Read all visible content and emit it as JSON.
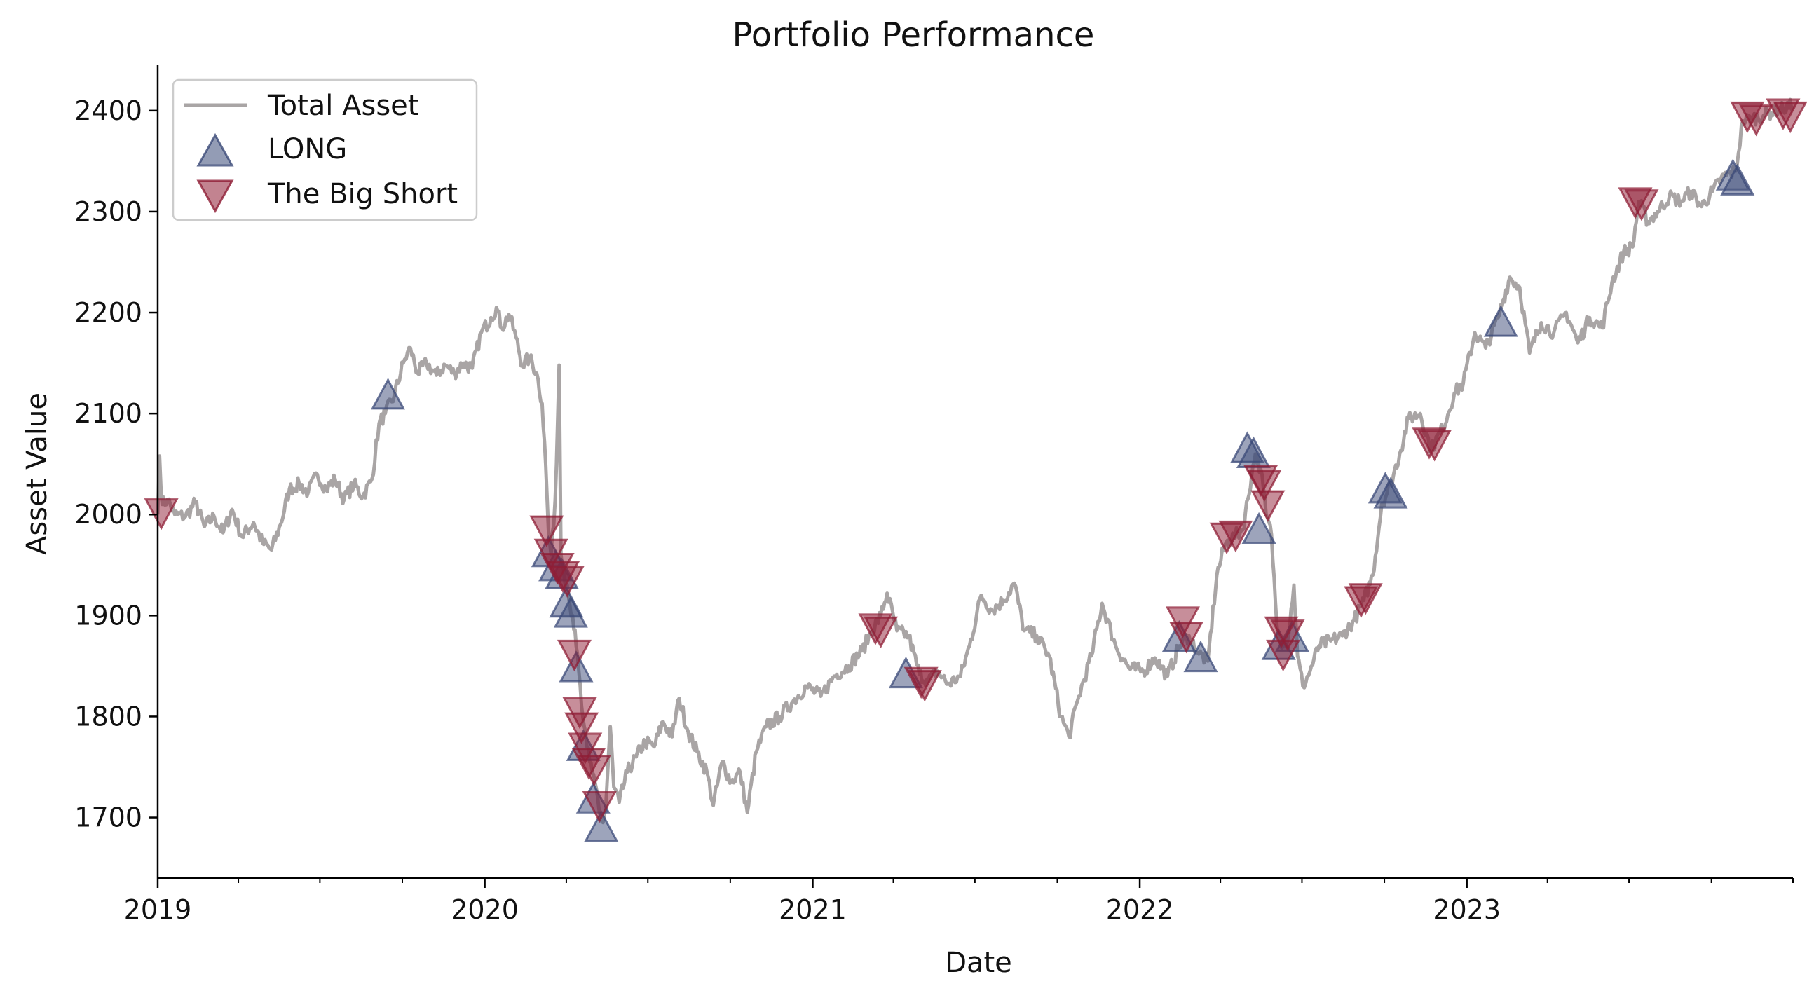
{
  "chart_data": {
    "type": "line",
    "title": "Portfolio Performance",
    "xlabel": "Date",
    "ylabel": "Asset Value",
    "xlim": [
      "2019-01-01",
      "2023-12-31"
    ],
    "ylim": [
      1640,
      2445
    ],
    "x_ticks": [
      "2019",
      "2020",
      "2021",
      "2022",
      "2023"
    ],
    "y_ticks": [
      1700,
      1800,
      1900,
      2000,
      2100,
      2200,
      2300,
      2400
    ],
    "grid": false,
    "legend_position": "top-left",
    "colors": {
      "line": "#a9a5a5",
      "long": "#3b4a78",
      "short": "#8f1d35"
    },
    "series": [
      {
        "name": "Total Asset",
        "kind": "line",
        "points": [
          [
            "2019-01-01",
            2000
          ],
          [
            "2019-01-03",
            2058
          ],
          [
            "2019-01-06",
            2010
          ],
          [
            "2019-01-12",
            2015
          ],
          [
            "2019-01-20",
            2000
          ],
          [
            "2019-02-01",
            1998
          ],
          [
            "2019-02-12",
            2012
          ],
          [
            "2019-02-22",
            1988
          ],
          [
            "2019-03-05",
            1998
          ],
          [
            "2019-03-15",
            1982
          ],
          [
            "2019-03-25",
            2005
          ],
          [
            "2019-04-05",
            1978
          ],
          [
            "2019-04-18",
            1992
          ],
          [
            "2019-04-28",
            1972
          ],
          [
            "2019-05-08",
            1965
          ],
          [
            "2019-05-18",
            1990
          ],
          [
            "2019-05-28",
            2025
          ],
          [
            "2019-06-08",
            2030
          ],
          [
            "2019-06-18",
            2022
          ],
          [
            "2019-06-28",
            2040
          ],
          [
            "2019-07-08",
            2025
          ],
          [
            "2019-07-18",
            2035
          ],
          [
            "2019-07-28",
            2015
          ],
          [
            "2019-08-08",
            2030
          ],
          [
            "2019-08-18",
            2018
          ],
          [
            "2019-08-28",
            2035
          ],
          [
            "2019-09-05",
            2090
          ],
          [
            "2019-09-12",
            2100
          ],
          [
            "2019-09-22",
            2118
          ],
          [
            "2019-10-02",
            2150
          ],
          [
            "2019-10-10",
            2165
          ],
          [
            "2019-10-18",
            2140
          ],
          [
            "2019-10-28",
            2150
          ],
          [
            "2019-11-08",
            2138
          ],
          [
            "2019-11-18",
            2148
          ],
          [
            "2019-11-28",
            2140
          ],
          [
            "2019-12-08",
            2150
          ],
          [
            "2019-12-18",
            2145
          ],
          [
            "2019-12-28",
            2180
          ],
          [
            "2020-01-08",
            2195
          ],
          [
            "2020-01-14",
            2205
          ],
          [
            "2020-01-20",
            2185
          ],
          [
            "2020-01-28",
            2198
          ],
          [
            "2020-02-05",
            2175
          ],
          [
            "2020-02-12",
            2148
          ],
          [
            "2020-02-20",
            2155
          ],
          [
            "2020-02-28",
            2140
          ],
          [
            "2020-03-05",
            2110
          ],
          [
            "2020-03-09",
            2050
          ],
          [
            "2020-03-12",
            1985
          ],
          [
            "2020-03-15",
            1960
          ],
          [
            "2020-03-18",
            1990
          ],
          [
            "2020-03-21",
            2050
          ],
          [
            "2020-03-24",
            2148
          ],
          [
            "2020-03-26",
            1960
          ],
          [
            "2020-03-29",
            1945
          ],
          [
            "2020-04-02",
            1930
          ],
          [
            "2020-04-05",
            1910
          ],
          [
            "2020-04-08",
            1900
          ],
          [
            "2020-04-12",
            1870
          ],
          [
            "2020-04-15",
            1845
          ],
          [
            "2020-04-18",
            1810
          ],
          [
            "2020-04-21",
            1790
          ],
          [
            "2020-04-24",
            1770
          ],
          [
            "2020-04-27",
            1755
          ],
          [
            "2020-04-30",
            1745
          ],
          [
            "2020-05-03",
            1735
          ],
          [
            "2020-05-06",
            1720
          ],
          [
            "2020-05-09",
            1700
          ],
          [
            "2020-05-12",
            1695
          ],
          [
            "2020-05-15",
            1710
          ],
          [
            "2020-05-20",
            1790
          ],
          [
            "2020-05-24",
            1730
          ],
          [
            "2020-05-30",
            1715
          ],
          [
            "2020-06-08",
            1745
          ],
          [
            "2020-06-18",
            1760
          ],
          [
            "2020-06-28",
            1775
          ],
          [
            "2020-07-08",
            1770
          ],
          [
            "2020-07-18",
            1795
          ],
          [
            "2020-07-28",
            1780
          ],
          [
            "2020-08-05",
            1818
          ],
          [
            "2020-08-15",
            1785
          ],
          [
            "2020-08-25",
            1765
          ],
          [
            "2020-09-05",
            1745
          ],
          [
            "2020-09-12",
            1712
          ],
          [
            "2020-09-22",
            1755
          ],
          [
            "2020-10-02",
            1735
          ],
          [
            "2020-10-12",
            1745
          ],
          [
            "2020-10-20",
            1705
          ],
          [
            "2020-10-30",
            1765
          ],
          [
            "2020-11-10",
            1790
          ],
          [
            "2020-11-25",
            1800
          ],
          [
            "2020-12-10",
            1815
          ],
          [
            "2020-12-25",
            1830
          ],
          [
            "2021-01-10",
            1820
          ],
          [
            "2021-01-25",
            1840
          ],
          [
            "2021-02-10",
            1850
          ],
          [
            "2021-02-25",
            1865
          ],
          [
            "2021-03-08",
            1885
          ],
          [
            "2021-03-18",
            1900
          ],
          [
            "2021-03-25",
            1922
          ],
          [
            "2021-04-05",
            1885
          ],
          [
            "2021-04-18",
            1880
          ],
          [
            "2021-04-30",
            1842
          ],
          [
            "2021-05-10",
            1835
          ],
          [
            "2021-05-20",
            1845
          ],
          [
            "2021-06-01",
            1832
          ],
          [
            "2021-06-15",
            1840
          ],
          [
            "2021-06-25",
            1870
          ],
          [
            "2021-07-08",
            1920
          ],
          [
            "2021-07-20",
            1905
          ],
          [
            "2021-08-02",
            1915
          ],
          [
            "2021-08-14",
            1932
          ],
          [
            "2021-08-25",
            1885
          ],
          [
            "2021-09-08",
            1880
          ],
          [
            "2021-09-22",
            1860
          ],
          [
            "2021-10-05",
            1800
          ],
          [
            "2021-10-14",
            1780
          ],
          [
            "2021-10-25",
            1820
          ],
          [
            "2021-11-08",
            1860
          ],
          [
            "2021-11-20",
            1912
          ],
          [
            "2021-12-05",
            1870
          ],
          [
            "2021-12-20",
            1848
          ],
          [
            "2022-01-05",
            1845
          ],
          [
            "2022-01-18",
            1858
          ],
          [
            "2022-02-01",
            1840
          ],
          [
            "2022-02-14",
            1870
          ],
          [
            "2022-02-25",
            1880
          ],
          [
            "2022-03-08",
            1862
          ],
          [
            "2022-03-18",
            1855
          ],
          [
            "2022-03-28",
            1940
          ],
          [
            "2022-04-06",
            1970
          ],
          [
            "2022-04-16",
            1978
          ],
          [
            "2022-04-26",
            1985
          ],
          [
            "2022-05-06",
            2040
          ],
          [
            "2022-05-10",
            2060
          ],
          [
            "2022-05-16",
            2045
          ],
          [
            "2022-05-22",
            2000
          ],
          [
            "2022-05-28",
            1980
          ],
          [
            "2022-06-03",
            1890
          ],
          [
            "2022-06-10",
            1870
          ],
          [
            "2022-06-16",
            1880
          ],
          [
            "2022-06-22",
            1930
          ],
          [
            "2022-06-26",
            1860
          ],
          [
            "2022-07-02",
            1830
          ],
          [
            "2022-07-10",
            1845
          ],
          [
            "2022-07-20",
            1870
          ],
          [
            "2022-08-02",
            1875
          ],
          [
            "2022-08-15",
            1880
          ],
          [
            "2022-08-28",
            1895
          ],
          [
            "2022-09-08",
            1915
          ],
          [
            "2022-09-18",
            1940
          ],
          [
            "2022-09-28",
            2010
          ],
          [
            "2022-10-08",
            2030
          ],
          [
            "2022-10-18",
            2060
          ],
          [
            "2022-10-28",
            2095
          ],
          [
            "2022-11-10",
            2100
          ],
          [
            "2022-11-22",
            2065
          ],
          [
            "2022-12-05",
            2085
          ],
          [
            "2022-12-18",
            2120
          ],
          [
            "2022-12-28",
            2130
          ],
          [
            "2023-01-10",
            2180
          ],
          [
            "2023-01-22",
            2165
          ],
          [
            "2023-02-05",
            2195
          ],
          [
            "2023-02-18",
            2235
          ],
          [
            "2023-03-01",
            2225
          ],
          [
            "2023-03-12",
            2160
          ],
          [
            "2023-03-25",
            2190
          ],
          [
            "2023-04-08",
            2180
          ],
          [
            "2023-04-22",
            2200
          ],
          [
            "2023-05-05",
            2170
          ],
          [
            "2023-05-18",
            2195
          ],
          [
            "2023-06-01",
            2185
          ],
          [
            "2023-06-12",
            2230
          ],
          [
            "2023-06-25",
            2260
          ],
          [
            "2023-07-05",
            2265
          ],
          [
            "2023-07-12",
            2310
          ],
          [
            "2023-07-22",
            2290
          ],
          [
            "2023-08-02",
            2300
          ],
          [
            "2023-08-15",
            2315
          ],
          [
            "2023-08-28",
            2310
          ],
          [
            "2023-09-08",
            2320
          ],
          [
            "2023-09-20",
            2305
          ],
          [
            "2023-10-02",
            2320
          ],
          [
            "2023-10-15",
            2335
          ],
          [
            "2023-10-28",
            2340
          ],
          [
            "2023-11-05",
            2390
          ],
          [
            "2023-11-15",
            2392
          ],
          [
            "2023-11-28",
            2395
          ],
          [
            "2023-12-10",
            2400
          ],
          [
            "2023-12-20",
            2402
          ],
          [
            "2023-12-31",
            2405
          ]
        ]
      },
      {
        "name": "LONG",
        "kind": "marker-up",
        "points": [
          [
            "2019-09-15",
            2118
          ],
          [
            "2020-03-12",
            1962
          ],
          [
            "2020-03-20",
            1948
          ],
          [
            "2020-03-27",
            1940
          ],
          [
            "2020-04-01",
            1912
          ],
          [
            "2020-04-06",
            1902
          ],
          [
            "2020-04-12",
            1848
          ],
          [
            "2020-04-20",
            1770
          ],
          [
            "2020-05-01",
            1718
          ],
          [
            "2020-05-10",
            1690
          ],
          [
            "2021-04-15",
            1842
          ],
          [
            "2022-02-14",
            1878
          ],
          [
            "2022-03-10",
            1858
          ],
          [
            "2022-05-01",
            2065
          ],
          [
            "2022-05-08",
            2060
          ],
          [
            "2022-05-14",
            1985
          ],
          [
            "2022-06-05",
            1870
          ],
          [
            "2022-06-20",
            1878
          ],
          [
            "2022-10-02",
            2025
          ],
          [
            "2022-10-08",
            2020
          ],
          [
            "2023-02-08",
            2190
          ],
          [
            "2023-10-25",
            2335
          ],
          [
            "2023-10-30",
            2330
          ]
        ]
      },
      {
        "name": "The Big Short",
        "kind": "marker-down",
        "points": [
          [
            "2019-01-05",
            2002
          ],
          [
            "2020-03-10",
            1985
          ],
          [
            "2020-03-15",
            1962
          ],
          [
            "2020-03-22",
            1948
          ],
          [
            "2020-03-28",
            1940
          ],
          [
            "2020-04-02",
            1935
          ],
          [
            "2020-04-10",
            1862
          ],
          [
            "2020-04-16",
            1805
          ],
          [
            "2020-04-18",
            1790
          ],
          [
            "2020-04-22",
            1770
          ],
          [
            "2020-04-26",
            1755
          ],
          [
            "2020-05-02",
            1748
          ],
          [
            "2020-05-08",
            1712
          ],
          [
            "2021-03-12",
            1888
          ],
          [
            "2021-03-18",
            1885
          ],
          [
            "2021-05-02",
            1835
          ],
          [
            "2021-05-06",
            1832
          ],
          [
            "2022-02-18",
            1895
          ],
          [
            "2022-02-22",
            1880
          ],
          [
            "2022-04-08",
            1978
          ],
          [
            "2022-04-18",
            1980
          ],
          [
            "2022-05-16",
            2035
          ],
          [
            "2022-05-20",
            2030
          ],
          [
            "2022-05-24",
            2010
          ],
          [
            "2022-06-08",
            1885
          ],
          [
            "2022-06-15",
            1882
          ],
          [
            "2022-06-10",
            1862
          ],
          [
            "2022-09-05",
            1915
          ],
          [
            "2022-09-10",
            1918
          ],
          [
            "2022-11-20",
            2072
          ],
          [
            "2022-11-26",
            2070
          ],
          [
            "2023-07-08",
            2310
          ],
          [
            "2023-07-15",
            2308
          ],
          [
            "2023-11-10",
            2395
          ],
          [
            "2023-11-20",
            2392
          ],
          [
            "2023-12-20",
            2398
          ],
          [
            "2023-12-28",
            2395
          ]
        ]
      }
    ]
  }
}
